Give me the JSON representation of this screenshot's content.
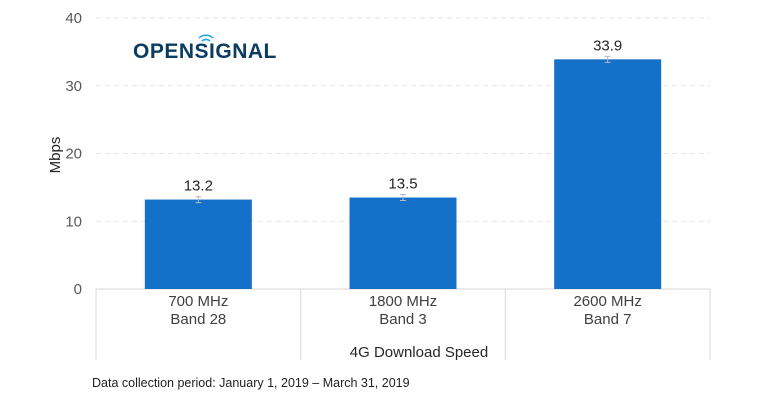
{
  "logo_text": "OPENSIGNAL",
  "chart_data": {
    "type": "bar",
    "title": "",
    "categories": [
      [
        "700 MHz",
        "Band 28"
      ],
      [
        "1800 MHz",
        "Band 3"
      ],
      [
        "2600 MHz",
        "Band 7"
      ]
    ],
    "values": [
      13.2,
      13.5,
      33.9
    ],
    "value_labels": [
      "13.2",
      "13.5",
      "33.9"
    ],
    "xlabel": "4G Download Speed",
    "ylabel": "Mbps",
    "ylim": [
      0,
      40
    ],
    "yticks": [
      "0",
      "10",
      "20",
      "30",
      "40"
    ],
    "grid": true,
    "bar_color": "#1570c9",
    "footnote": "Data collection period: January 1, 2019 – March 31, 2019"
  }
}
